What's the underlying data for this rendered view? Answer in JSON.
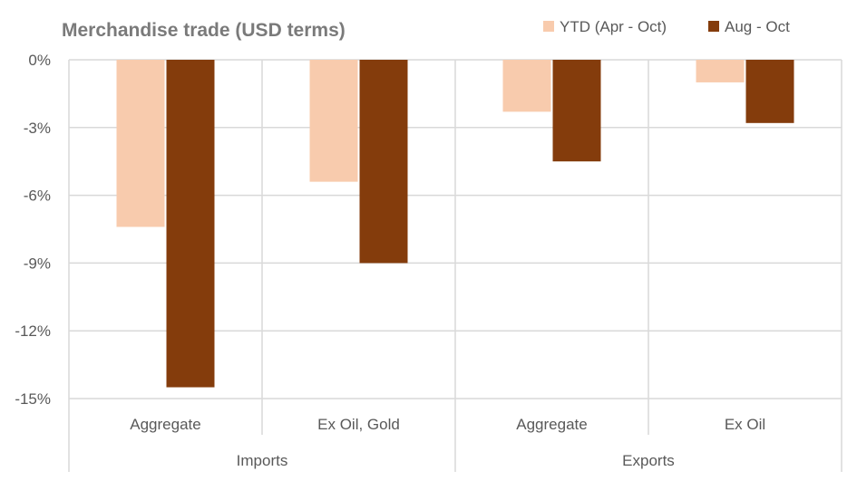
{
  "chart_data": {
    "type": "bar",
    "title": "Merchandise trade (USD terms)",
    "categories": [
      "Aggregate",
      "Ex Oil, Gold",
      "Aggregate",
      "Ex Oil"
    ],
    "groups": [
      {
        "label": "Imports",
        "categories": [
          0,
          1
        ]
      },
      {
        "label": "Exports",
        "categories": [
          2,
          3
        ]
      }
    ],
    "series": [
      {
        "name": "YTD (Apr - Oct)",
        "color": "#f8cbad",
        "values": [
          -7.4,
          -5.4,
          -2.3,
          -1.0
        ]
      },
      {
        "name": "Aug - Oct",
        "color": "#843c0c",
        "values": [
          -14.5,
          -9.0,
          -4.5,
          -2.8
        ]
      }
    ],
    "ylim": [
      -15,
      0
    ],
    "yticks": [
      "0%",
      "-3%",
      "-6%",
      "-9%",
      "-12%",
      "-15%"
    ],
    "ytick_values": [
      0,
      -3,
      -6,
      -9,
      -12,
      -15
    ],
    "grid": true,
    "legend": "top-right",
    "xlabel": "",
    "ylabel": ""
  }
}
